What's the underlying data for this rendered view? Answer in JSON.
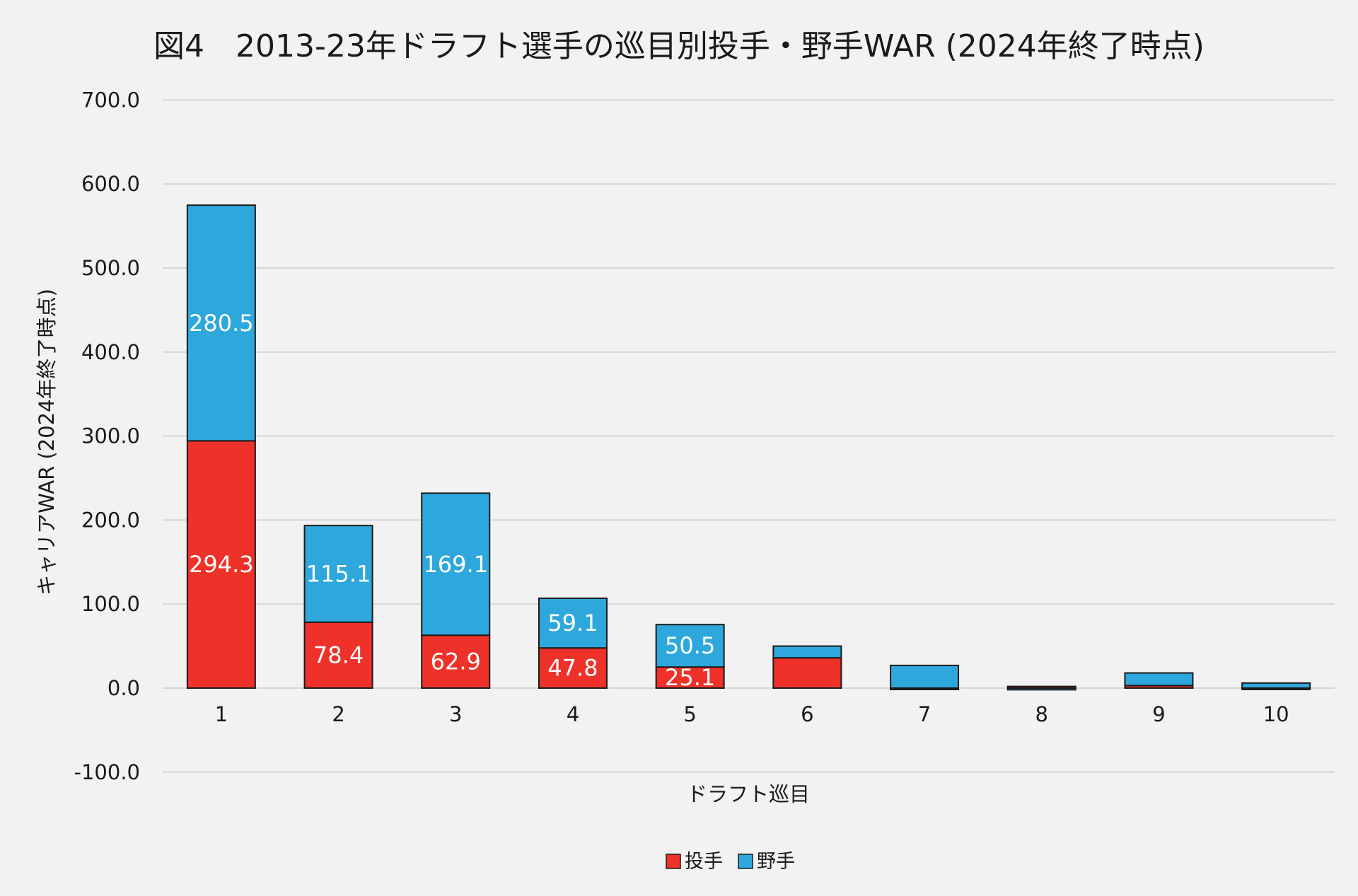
{
  "chart_data": {
    "type": "bar",
    "stacked": true,
    "title": "図4　2013-23年ドラフト選手の巡目別投手・野手WAR (2024年終了時点)",
    "xlabel": "ドラフト巡目",
    "ylabel": "キャリアWAR (2024年終了時点)",
    "ylim": [
      -100,
      700
    ],
    "yticks": [
      -100,
      0,
      100,
      200,
      300,
      400,
      500,
      600,
      700
    ],
    "ytick_labels": [
      "-100.0",
      "0.0",
      "100.0",
      "200.0",
      "300.0",
      "400.0",
      "500.0",
      "600.0",
      "700.0"
    ],
    "grid": true,
    "legend_position": "bottom",
    "categories": [
      "1",
      "2",
      "3",
      "4",
      "5",
      "6",
      "7",
      "8",
      "9",
      "10"
    ],
    "series": [
      {
        "name": "投手",
        "color": "#ee3129",
        "values": [
          294.3,
          78.4,
          62.9,
          47.8,
          25.1,
          36.0,
          0.0,
          2.0,
          3.0,
          -1.0
        ],
        "data_labels": [
          "294.3",
          "78.4",
          "62.9",
          "47.8",
          "25.1",
          "",
          "",
          "",
          "",
          ""
        ]
      },
      {
        "name": "野手",
        "color": "#2ea8dc",
        "values": [
          280.5,
          115.1,
          169.1,
          59.1,
          50.5,
          14.0,
          27.0,
          -2.0,
          15.0,
          6.0
        ],
        "data_labels": [
          "280.5",
          "115.1",
          "169.1",
          "59.1",
          "50.5",
          "",
          "",
          "",
          "",
          ""
        ]
      }
    ]
  }
}
